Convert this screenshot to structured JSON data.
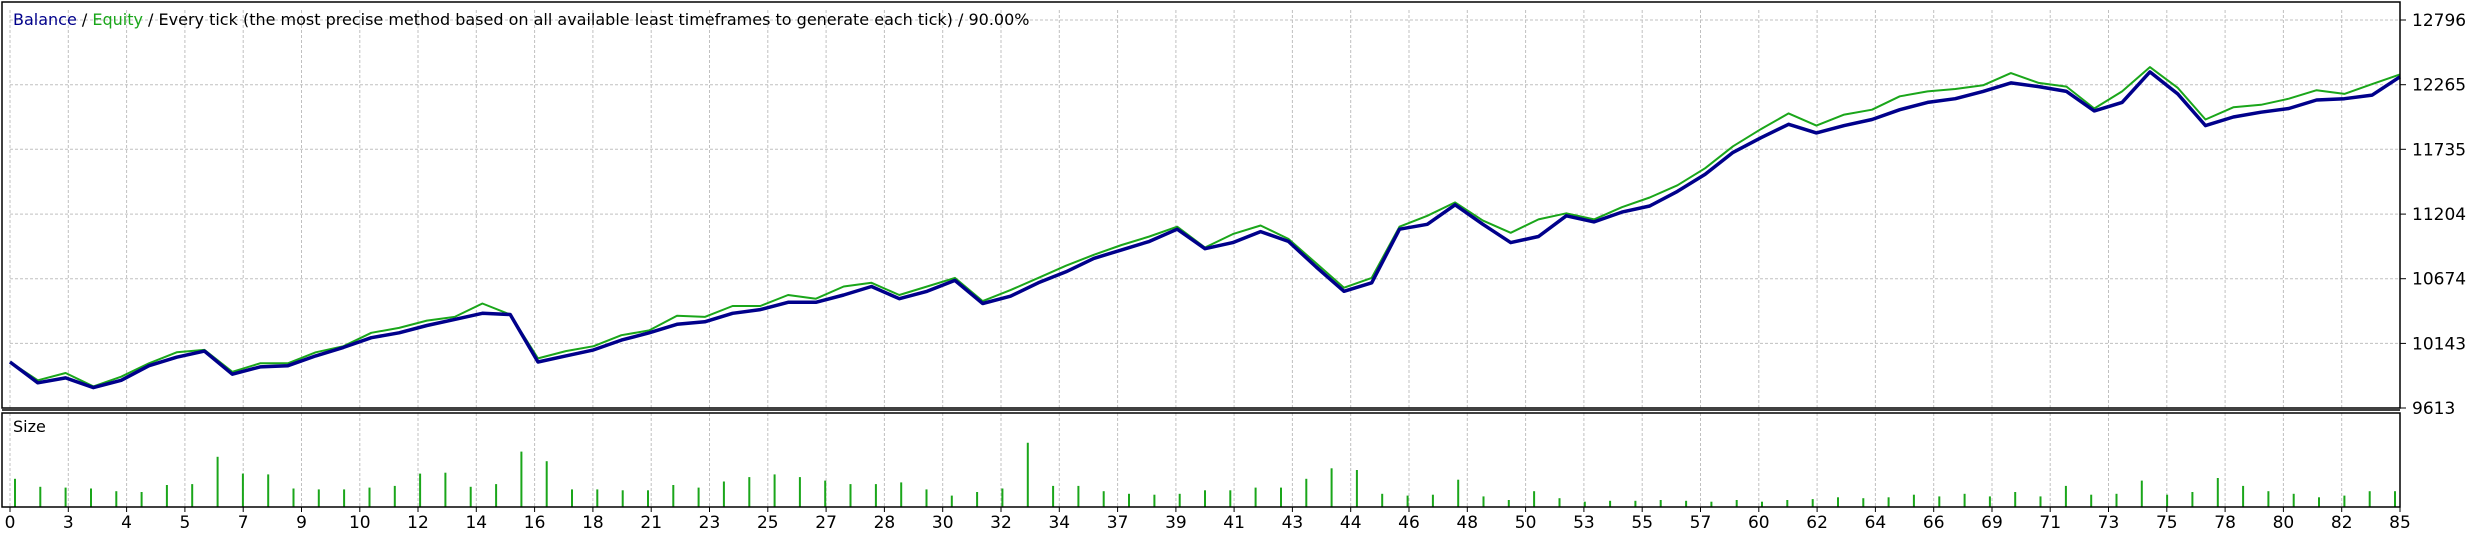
{
  "legend": {
    "balance": "Balance",
    "sep1": " / ",
    "equity": "Equity",
    "rest": " / Every tick (the most precise method based on all available least timeframes to generate each tick) / 90.00%"
  },
  "size_panel": {
    "label": "Size"
  },
  "colors": {
    "balance": "#00008b",
    "equity": "#1aa61a",
    "size": "#1aa61a",
    "grid": "#c0c0c0",
    "axis": "#000000"
  },
  "chart_data": [
    {
      "type": "line",
      "title": "",
      "xlabel": "",
      "ylabel": "",
      "ylim": [
        9613,
        12796
      ],
      "y_ticks": [
        9613,
        10143,
        10674,
        11204,
        11735,
        12265,
        12796
      ],
      "x_tick_labels": [
        "0",
        "3",
        "4",
        "5",
        "7",
        "9",
        "10",
        "12",
        "14",
        "16",
        "18",
        "21",
        "23",
        "25",
        "27",
        "28",
        "30",
        "32",
        "34",
        "37",
        "39",
        "41",
        "43",
        "44",
        "46",
        "48",
        "50",
        "53",
        "55",
        "57",
        "60",
        "62",
        "64",
        "66",
        "69",
        "71",
        "73",
        "75",
        "78",
        "80",
        "82",
        "85"
      ],
      "grid": true,
      "series": [
        {
          "name": "Balance",
          "values": [
            9990,
            9820,
            9860,
            9780,
            9840,
            9960,
            10030,
            10080,
            9890,
            9950,
            9960,
            10040,
            10110,
            10190,
            10230,
            10290,
            10340,
            10390,
            10380,
            9990,
            10040,
            10090,
            10170,
            10230,
            10300,
            10320,
            10390,
            10420,
            10480,
            10480,
            10540,
            10610,
            10510,
            10570,
            10660,
            10470,
            10530,
            10640,
            10730,
            10840,
            10910,
            10980,
            11080,
            10920,
            10970,
            11060,
            10980,
            10770,
            10570,
            10640,
            11080,
            11120,
            11280,
            11120,
            10970,
            11020,
            11190,
            11140,
            11220,
            11270,
            11390,
            11530,
            11710,
            11830,
            11940,
            11870,
            11930,
            11980,
            12060,
            12120,
            12150,
            12210,
            12280,
            12250,
            12210,
            12050,
            12120,
            12370,
            12190,
            11930,
            12000,
            12040,
            12070,
            12140,
            12150,
            12180,
            12330
          ]
        },
        {
          "name": "Equity",
          "values": [
            9990,
            9840,
            9900,
            9790,
            9870,
            9980,
            10070,
            10090,
            9910,
            9980,
            9980,
            10070,
            10120,
            10230,
            10270,
            10330,
            10360,
            10470,
            10380,
            10020,
            10080,
            10120,
            10210,
            10250,
            10370,
            10360,
            10450,
            10450,
            10540,
            10510,
            10610,
            10640,
            10540,
            10610,
            10680,
            10490,
            10580,
            10680,
            10780,
            10870,
            10950,
            11020,
            11100,
            10930,
            11040,
            11110,
            11000,
            10800,
            10600,
            10680,
            11100,
            11190,
            11300,
            11150,
            11050,
            11160,
            11210,
            11160,
            11260,
            11340,
            11440,
            11580,
            11760,
            11900,
            12030,
            11930,
            12020,
            12060,
            12170,
            12210,
            12230,
            12260,
            12360,
            12280,
            12250,
            12070,
            12210,
            12410,
            12240,
            11980,
            12080,
            12100,
            12150,
            12220,
            12190,
            12270,
            12350
          ]
        }
      ]
    },
    {
      "type": "bar",
      "title": "Size",
      "values": [
        0.32,
        0.23,
        0.22,
        0.21,
        0.18,
        0.17,
        0.25,
        0.26,
        0.57,
        0.38,
        0.37,
        0.21,
        0.2,
        0.2,
        0.22,
        0.24,
        0.38,
        0.39,
        0.23,
        0.26,
        0.63,
        0.52,
        0.2,
        0.2,
        0.19,
        0.19,
        0.25,
        0.22,
        0.29,
        0.34,
        0.37,
        0.34,
        0.3,
        0.26,
        0.26,
        0.28,
        0.2,
        0.13,
        0.17,
        0.21,
        0.73,
        0.24,
        0.24,
        0.18,
        0.15,
        0.14,
        0.15,
        0.19,
        0.19,
        0.22,
        0.22,
        0.32,
        0.44,
        0.42,
        0.15,
        0.13,
        0.14,
        0.31,
        0.12,
        0.08,
        0.18,
        0.1,
        0.06,
        0.07,
        0.07,
        0.08,
        0.07,
        0.06,
        0.08,
        0.06,
        0.08,
        0.09,
        0.11,
        0.1,
        0.11,
        0.14,
        0.12,
        0.15,
        0.12,
        0.17,
        0.12,
        0.24,
        0.14,
        0.15,
        0.3,
        0.14,
        0.17,
        0.33,
        0.24,
        0.18,
        0.15,
        0.11,
        0.13,
        0.18,
        0.18
      ]
    }
  ]
}
